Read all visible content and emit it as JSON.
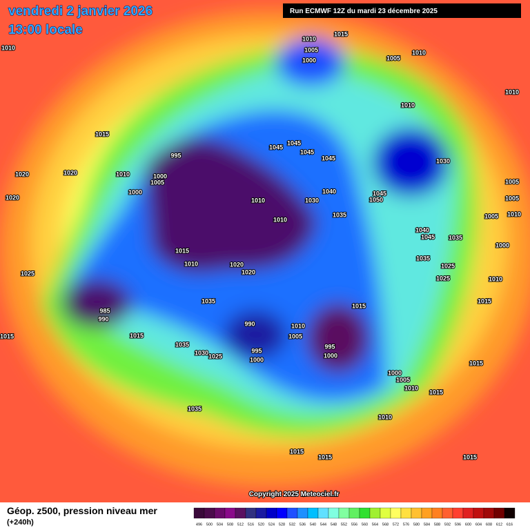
{
  "header": {
    "title": "vendredi 2 janvier 2026",
    "subtitle": "13:00 locale",
    "run": "Run ECMWF 12Z du mardi 23 décembre 2025"
  },
  "copyright": "Copyright 2025 Meteociel.fr",
  "legend": {
    "title": "Géop. z500, pression niveau mer",
    "subtitle": "(+240h)",
    "levels": [
      496,
      500,
      504,
      508,
      512,
      516,
      520,
      524,
      528,
      532,
      536,
      540,
      544,
      548,
      552,
      556,
      560,
      564,
      568,
      572,
      576,
      580,
      584,
      588,
      592,
      596,
      600,
      604,
      608,
      612,
      616
    ],
    "colors": [
      "#3a0a3a",
      "#4b0b4b",
      "#6a0a6a",
      "#8a0a8a",
      "#5a1060",
      "#303080",
      "#1a1aa0",
      "#0000c8",
      "#0000ff",
      "#1e50ff",
      "#1e90ff",
      "#00bfff",
      "#60e0ff",
      "#80ffe0",
      "#80ffa0",
      "#60f060",
      "#30e030",
      "#a0f030",
      "#e0ff40",
      "#ffff60",
      "#ffe040",
      "#ffc030",
      "#ffa020",
      "#ff8020",
      "#ff6030",
      "#ff4030",
      "#e02020",
      "#c01010",
      "#a00808",
      "#700000",
      "#100000"
    ]
  },
  "isobars": [
    1010,
    1015,
    1010,
    1005,
    1000,
    1010,
    1005,
    1010,
    1010,
    1015,
    995,
    1045,
    1045,
    1045,
    1045,
    1030,
    1020,
    1020,
    1010,
    1000,
    1005,
    1000,
    1020,
    1010,
    1030,
    1040,
    1045,
    1050,
    1010,
    1035,
    1005,
    1005,
    1010,
    1005,
    1040,
    1045,
    1035,
    1000,
    1015,
    1010,
    1020,
    1020,
    1035,
    1025,
    1025,
    1025,
    1010,
    1035,
    1015,
    985,
    990,
    1015,
    990,
    1010,
    1005,
    1015,
    995,
    1000,
    995,
    1000,
    1035,
    1030,
    1025,
    1015,
    1015,
    1000,
    1005,
    1010,
    1015,
    1035,
    1010,
    1015,
    1015,
    1015
  ]
}
